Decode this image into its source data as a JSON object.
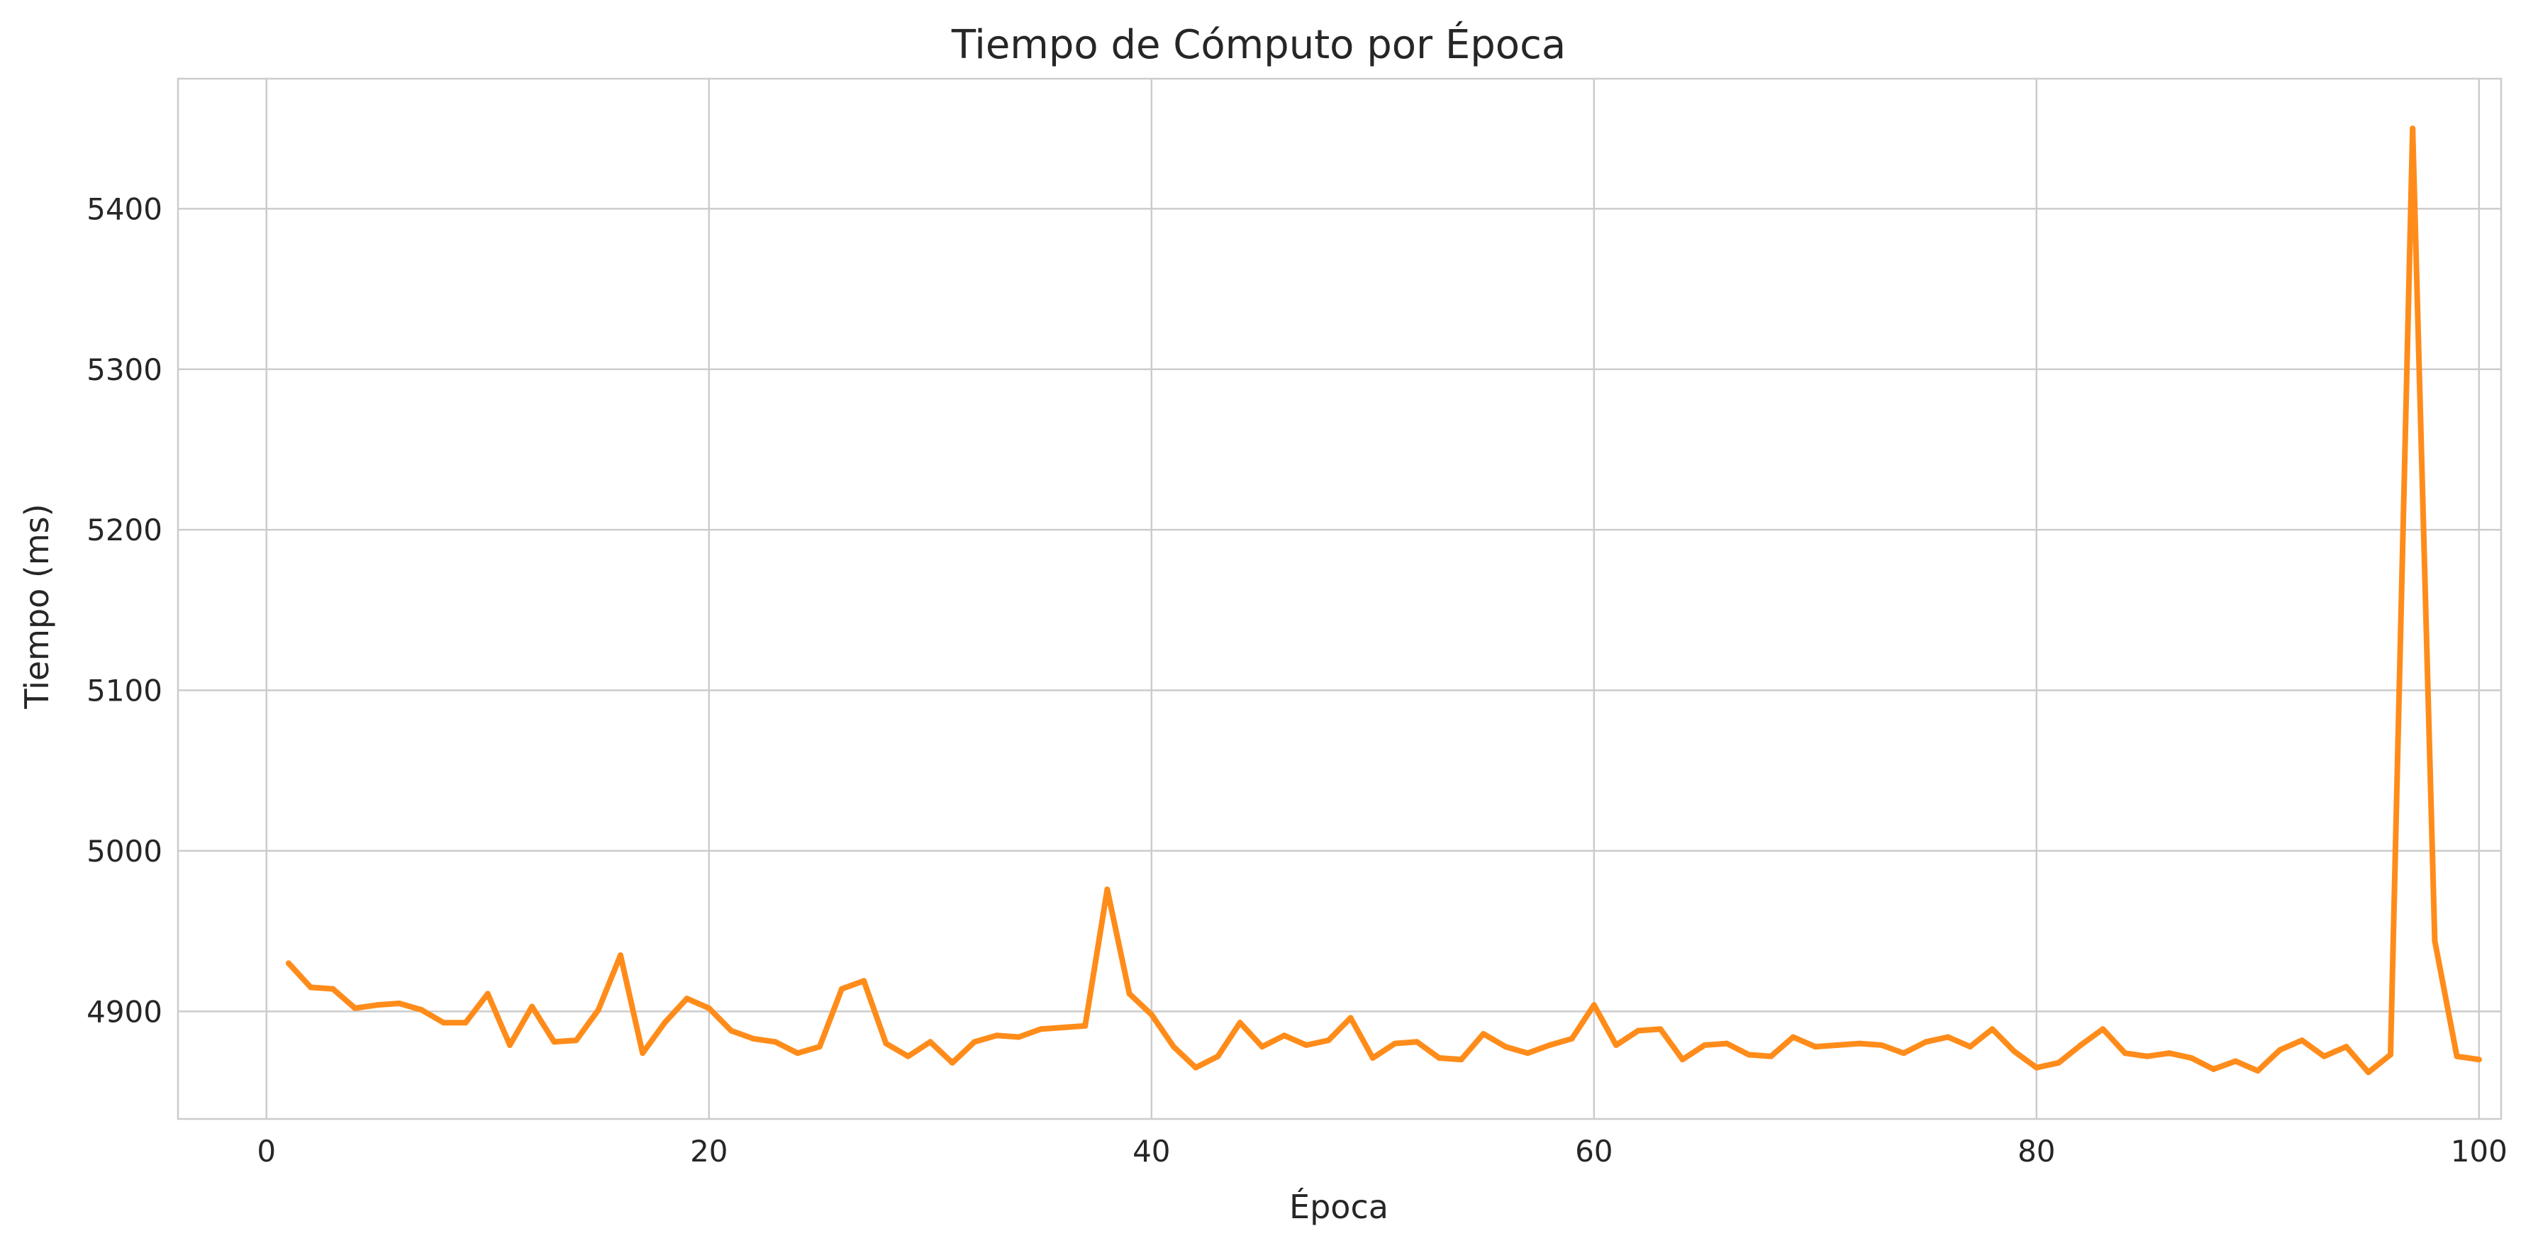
{
  "chart_data": {
    "type": "line",
    "title": "Tiempo de Cómputo por Época",
    "xlabel": "Época",
    "ylabel": "Tiempo (ms)",
    "xlim": [
      -4,
      101
    ],
    "ylim": [
      4833,
      5481
    ],
    "xticks": [
      0,
      20,
      40,
      60,
      80,
      100
    ],
    "yticks": [
      4900,
      5000,
      5100,
      5200,
      5300,
      5400
    ],
    "grid": true,
    "legend": "none",
    "colors": {
      "line": "#ff8c1a",
      "grid": "#cccccc",
      "axes": "#cccccc"
    },
    "series": [
      {
        "x": [
          1,
          2,
          3,
          4,
          5,
          6,
          7,
          8,
          9,
          10,
          11,
          12,
          13,
          14,
          15,
          16,
          17,
          18,
          19,
          20,
          21,
          22,
          23,
          24,
          25,
          26,
          27,
          28,
          29,
          30,
          31,
          32,
          33,
          34,
          35,
          36,
          37,
          38,
          39,
          40,
          41,
          42,
          43,
          44,
          45,
          46,
          47,
          48,
          49,
          50,
          51,
          52,
          53,
          54,
          55,
          56,
          57,
          58,
          59,
          60,
          61,
          62,
          63,
          64,
          65,
          66,
          67,
          68,
          69,
          70,
          71,
          72,
          73,
          74,
          75,
          76,
          77,
          78,
          79,
          80,
          81,
          82,
          83,
          84,
          85,
          86,
          87,
          88,
          89,
          90,
          91,
          92,
          93,
          94,
          95,
          96,
          97,
          98,
          99,
          100
        ],
        "values": [
          4930,
          4915,
          4914,
          4902,
          4904,
          4905,
          4901,
          4893,
          4893,
          4911,
          4879,
          4903,
          4881,
          4882,
          4901,
          4935,
          4874,
          4893,
          4908,
          4902,
          4888,
          4883,
          4881,
          4874,
          4878,
          4914,
          4919,
          4880,
          4872,
          4881,
          4868,
          4881,
          4885,
          4884,
          4889,
          4890,
          4891,
          4976,
          4911,
          4898,
          4878,
          4865,
          4872,
          4893,
          4878,
          4885,
          4879,
          4882,
          4896,
          4871,
          4880,
          4881,
          4871,
          4870,
          4886,
          4878,
          4874,
          4879,
          4883,
          4904,
          4879,
          4888,
          4889,
          4870,
          4879,
          4880,
          4873,
          4872,
          4884,
          4878,
          4879,
          4880,
          4879,
          4874,
          4881,
          4884,
          4878,
          4889,
          4875,
          4865,
          4868,
          4879,
          4889,
          4874,
          4872,
          4874,
          4871,
          4864,
          4869,
          4863,
          4876,
          4882,
          4872,
          4878,
          4862,
          4873,
          5450,
          4944,
          4872,
          4870
        ]
      }
    ]
  }
}
